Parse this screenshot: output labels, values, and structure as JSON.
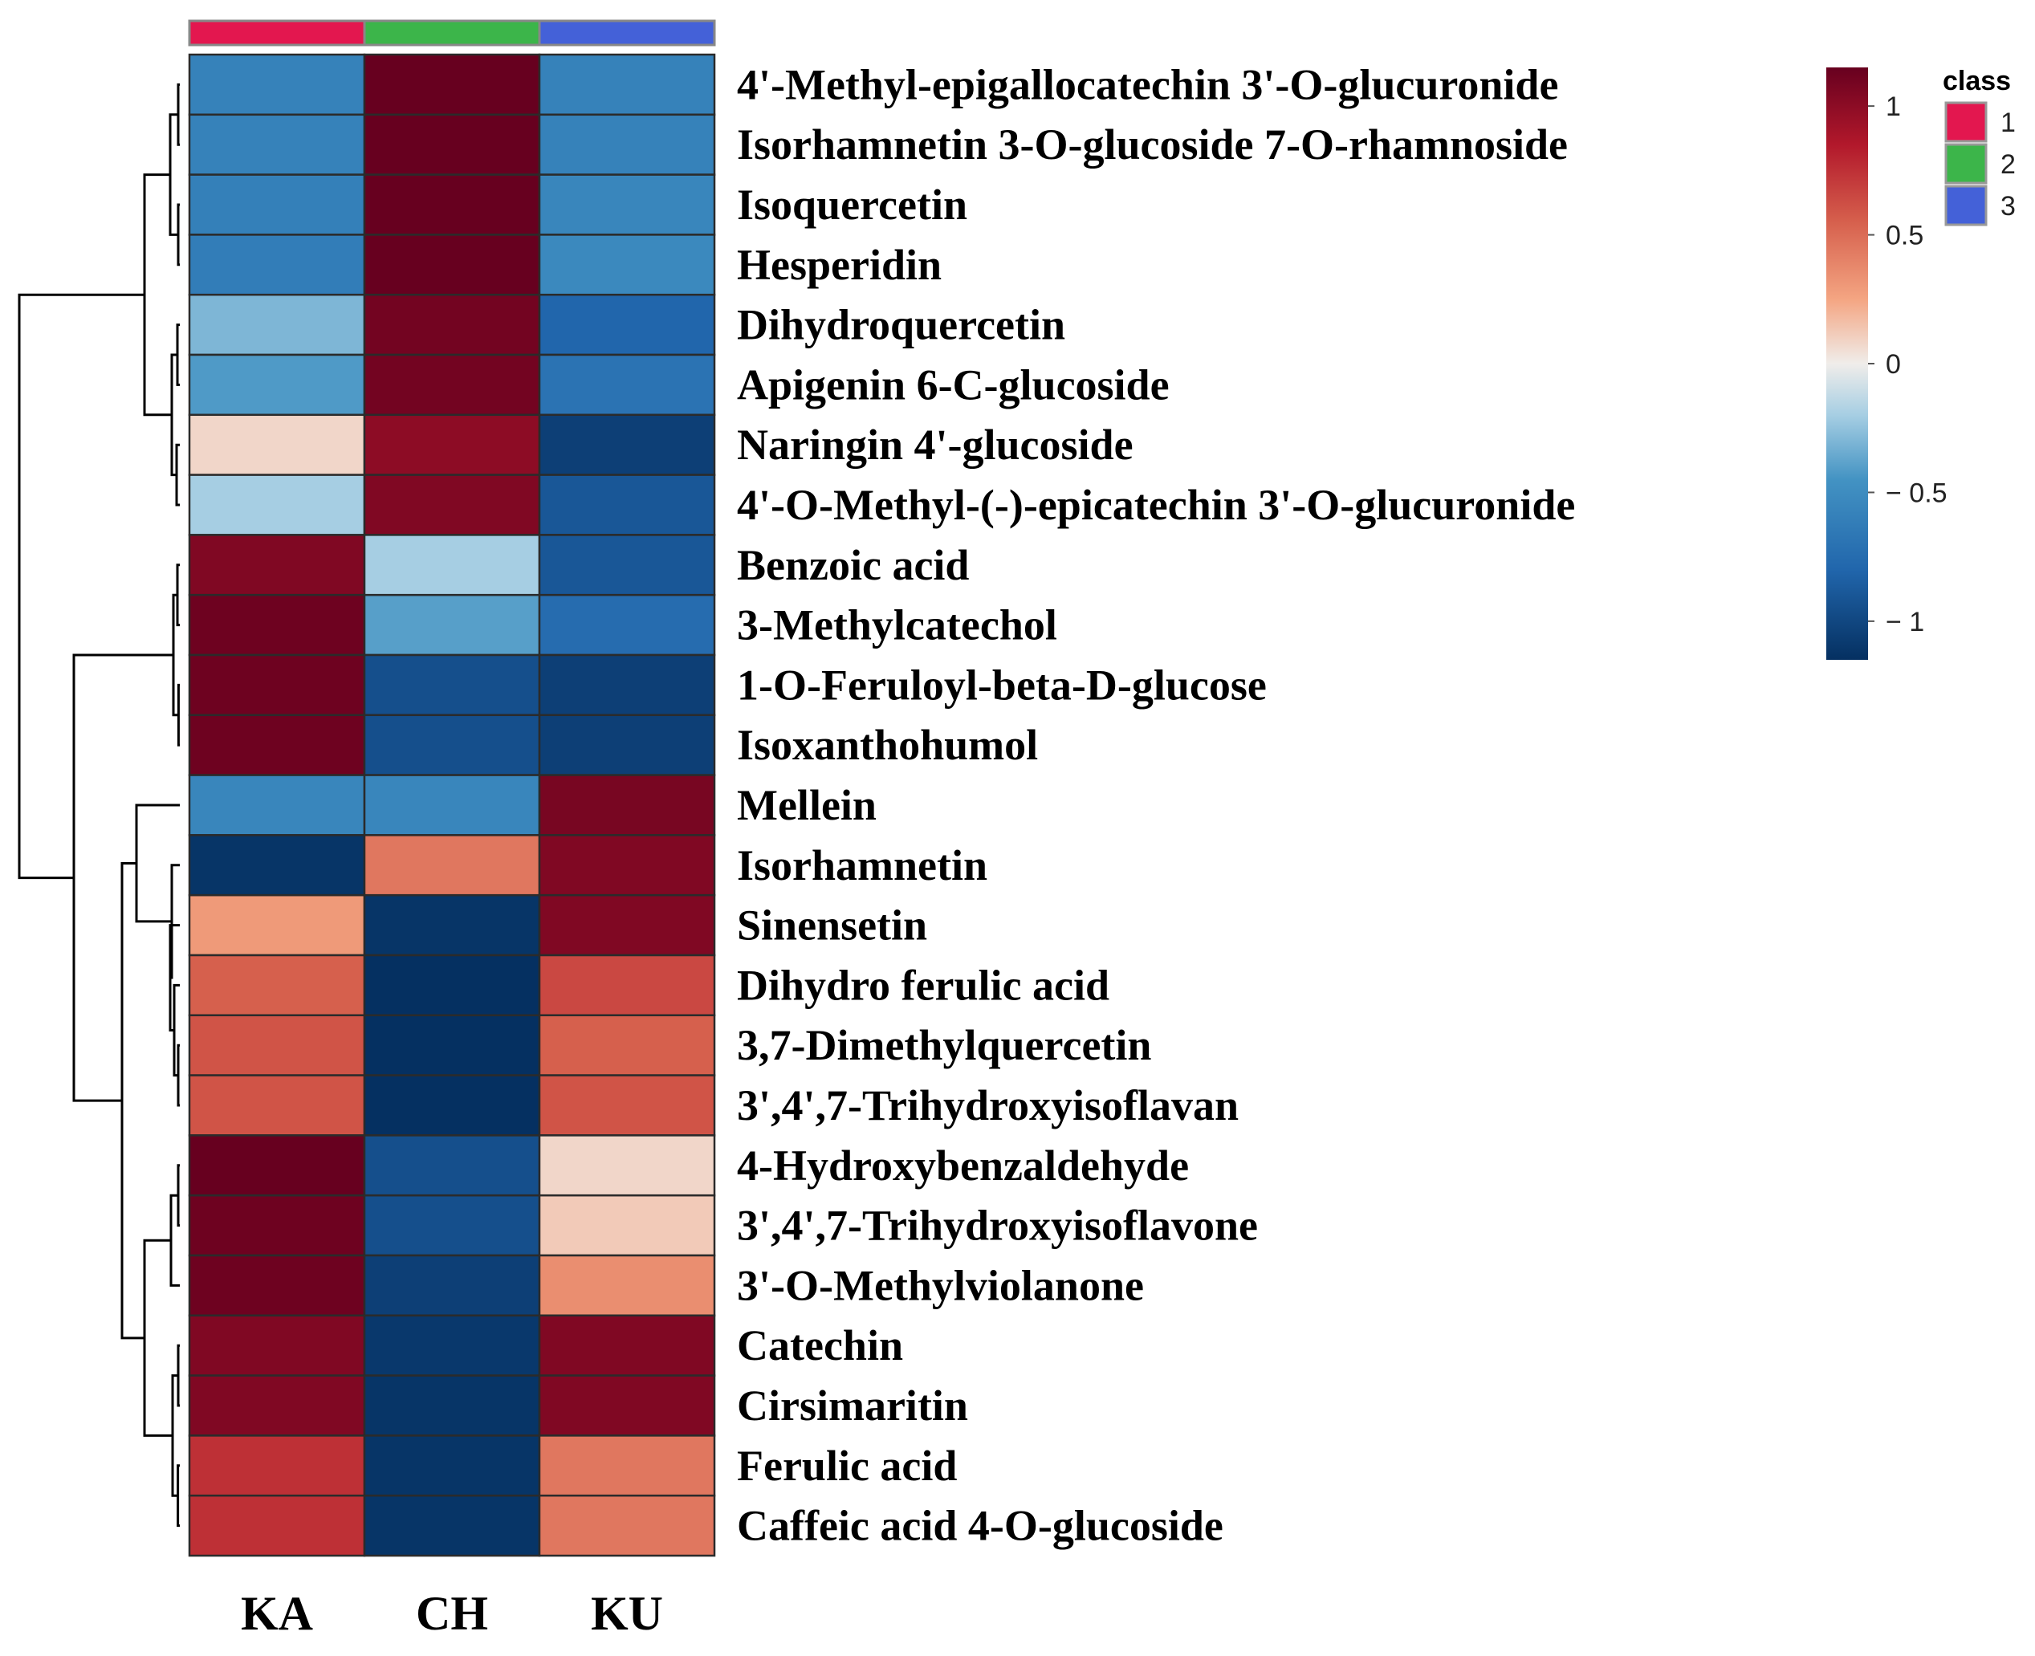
{
  "chart_data": {
    "type": "heatmap",
    "columns": [
      "KA",
      "CH",
      "KU"
    ],
    "column_classes": [
      "1",
      "2",
      "3"
    ],
    "class_legend": {
      "title": "class",
      "entries": [
        {
          "label": "1",
          "color": "#E3174F"
        },
        {
          "label": "2",
          "color": "#3CB54A"
        },
        {
          "label": "3",
          "color": "#4461D8"
        }
      ]
    },
    "rows": [
      "4'-Methyl-epigallocatechin 3'-O-glucuronide",
      "Isorhamnetin 3-O-glucoside 7-O-rhamnoside",
      "Isoquercetin",
      "Hesperidin",
      "Dihydroquercetin",
      "Apigenin 6-C-glucoside",
      "Naringin 4'-glucoside",
      "4'-O-Methyl-(-)-epicatechin 3'-O-glucuronide",
      "Benzoic acid",
      "3-Methylcatechol",
      "1-O-Feruloyl-beta-D-glucose",
      "Isoxanthohumol",
      "Mellein",
      "Isorhamnetin",
      "Sinensetin",
      "Dihydro ferulic acid",
      "3,7-Dimethylquercetin",
      "3',4',7-Trihydroxyisoflavan",
      "4-Hydroxybenzaldehyde",
      "3',4',7-Trihydroxyisoflavone",
      "3'-O-Methylviolanone",
      "Catechin",
      "Cirsimaritin",
      "Ferulic acid",
      "Caffeic acid 4-O-glucoside"
    ],
    "values": [
      [
        -0.58,
        1.15,
        -0.58
      ],
      [
        -0.58,
        1.15,
        -0.58
      ],
      [
        -0.6,
        1.15,
        -0.55
      ],
      [
        -0.62,
        1.15,
        -0.53
      ],
      [
        -0.3,
        1.1,
        -0.8
      ],
      [
        -0.42,
        1.1,
        -0.7
      ],
      [
        0.08,
        1.0,
        -1.05
      ],
      [
        -0.2,
        1.05,
        -0.9
      ],
      [
        1.05,
        -0.2,
        -0.9
      ],
      [
        1.12,
        -0.4,
        -0.75
      ],
      [
        1.12,
        -0.95,
        -1.05
      ],
      [
        1.12,
        -0.95,
        -1.05
      ],
      [
        -0.55,
        -0.55,
        1.08
      ],
      [
        -1.12,
        0.45,
        1.05
      ],
      [
        0.3,
        -1.12,
        1.05
      ],
      [
        0.55,
        -1.15,
        0.65
      ],
      [
        0.6,
        -1.15,
        0.55
      ],
      [
        0.6,
        -1.15,
        0.6
      ],
      [
        1.15,
        -0.95,
        0.08
      ],
      [
        1.12,
        -0.95,
        0.12
      ],
      [
        1.12,
        -1.05,
        0.35
      ],
      [
        1.05,
        -1.1,
        1.05
      ],
      [
        1.05,
        -1.12,
        1.05
      ],
      [
        0.75,
        -1.12,
        0.45
      ],
      [
        0.75,
        -1.12,
        0.45
      ]
    ],
    "colorbar": {
      "range": [
        -1.15,
        1.15
      ],
      "ticks": [
        {
          "value": 1,
          "label": "1"
        },
        {
          "value": 0.5,
          "label": "0.5"
        },
        {
          "value": 0,
          "label": "0"
        },
        {
          "value": -0.5,
          "label": "− 0.5"
        },
        {
          "value": -1,
          "label": "− 1"
        }
      ],
      "colors": [
        {
          "v": -1.15,
          "c": "#053061"
        },
        {
          "v": -0.8,
          "c": "#2166AC"
        },
        {
          "v": -0.45,
          "c": "#4393C3"
        },
        {
          "v": -0.2,
          "c": "#A6CEE3"
        },
        {
          "v": 0,
          "c": "#F0EDEA"
        },
        {
          "v": 0.25,
          "c": "#F4A582"
        },
        {
          "v": 0.55,
          "c": "#D6604D"
        },
        {
          "v": 0.85,
          "c": "#B2182B"
        },
        {
          "v": 1.15,
          "c": "#67001F"
        }
      ]
    },
    "row_dendrogram": true
  }
}
